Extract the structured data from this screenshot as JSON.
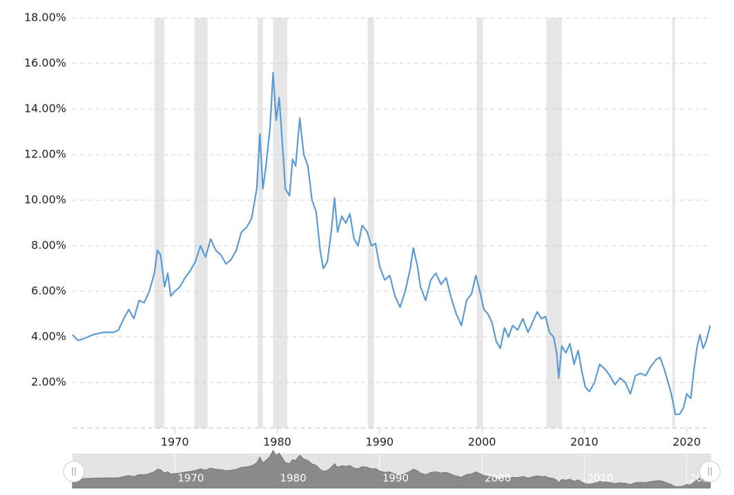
{
  "chart_data": {
    "type": "line",
    "x": [
      1960,
      1960.5,
      1961,
      1962,
      1963,
      1964,
      1964.5,
      1965,
      1965.5,
      1966,
      1966.5,
      1967,
      1967.5,
      1968,
      1968.3,
      1968.6,
      1969,
      1969.3,
      1969.6,
      1970,
      1970.5,
      1971,
      1971.5,
      1972,
      1972.5,
      1973,
      1973.5,
      1974,
      1974.5,
      1975,
      1975.5,
      1976,
      1976.5,
      1977,
      1977.5,
      1978,
      1978.3,
      1978.6,
      1978.9,
      1979.3,
      1979.6,
      1979.9,
      1980.2,
      1980.5,
      1980.8,
      1981.2,
      1981.5,
      1981.8,
      1982.2,
      1982.6,
      1983,
      1983.4,
      1983.8,
      1984.2,
      1984.5,
      1984.9,
      1985.3,
      1985.6,
      1985.9,
      1986.3,
      1986.7,
      1987.1,
      1987.5,
      1987.9,
      1988.3,
      1988.8,
      1989.2,
      1989.6,
      1990,
      1990.5,
      1991,
      1991.5,
      1992,
      1992.5,
      1993,
      1993.3,
      1993.7,
      1994,
      1994.5,
      1995,
      1995.5,
      1996,
      1996.5,
      1997,
      1997.5,
      1998,
      1998.5,
      1999,
      1999.4,
      1999.8,
      2000.2,
      2000.6,
      2001,
      2001.4,
      2001.8,
      2002.2,
      2002.6,
      2003,
      2003.5,
      2004,
      2004.5,
      2005,
      2005.4,
      2005.8,
      2006.2,
      2006.6,
      2007,
      2007.3,
      2007.5,
      2007.8,
      2008.2,
      2008.6,
      2009,
      2009.4,
      2009.8,
      2010.1,
      2010.5,
      2011,
      2011.5,
      2012,
      2012.5,
      2013,
      2013.5,
      2014,
      2014.5,
      2015,
      2015.5,
      2016,
      2016.5,
      2017,
      2017.4,
      2017.8,
      2018.2,
      2018.5,
      2018.9,
      2019.3,
      2019.7,
      2020,
      2020.4,
      2020.7,
      2021,
      2021.3,
      2021.6,
      2021.9,
      2022.3
    ],
    "series": [
      {
        "color": "#5a9bd4",
        "values": [
          4.1,
          3.85,
          3.9,
          4.1,
          4.2,
          4.2,
          4.3,
          4.8,
          5.2,
          4.8,
          5.6,
          5.5,
          6.0,
          6.8,
          7.8,
          7.6,
          6.2,
          6.8,
          5.8,
          6.0,
          6.2,
          6.6,
          6.9,
          7.3,
          8.0,
          7.5,
          8.3,
          7.8,
          7.6,
          7.2,
          7.4,
          7.8,
          8.6,
          8.8,
          9.2,
          10.5,
          12.9,
          10.5,
          11.5,
          13.2,
          15.6,
          13.5,
          14.5,
          12.5,
          10.5,
          10.2,
          11.8,
          11.5,
          13.6,
          12.0,
          11.5,
          10.0,
          9.5,
          7.8,
          7.0,
          7.3,
          8.7,
          10.1,
          8.6,
          9.3,
          9.0,
          9.4,
          8.3,
          8.0,
          8.9,
          8.6,
          8.0,
          8.1,
          7.1,
          6.5,
          6.7,
          5.8,
          5.3,
          6.0,
          7.0,
          7.9,
          7.1,
          6.2,
          5.6,
          6.5,
          6.8,
          6.3,
          6.6,
          5.7,
          5.0,
          4.5,
          5.6,
          5.9,
          6.7,
          6.0,
          5.2,
          5.0,
          4.6,
          3.8,
          3.5,
          4.4,
          4.0,
          4.5,
          4.3,
          4.8,
          4.2,
          4.7,
          5.1,
          4.8,
          4.9,
          4.2,
          4.0,
          3.3,
          2.2,
          3.6,
          3.3,
          3.7,
          2.8,
          3.4,
          2.4,
          1.8,
          1.6,
          2.0,
          2.8,
          2.6,
          2.3,
          1.9,
          2.2,
          2.0,
          1.5,
          2.3,
          2.4,
          2.3,
          2.7,
          3.0,
          3.1,
          2.6,
          2.0,
          1.5,
          0.6,
          0.6,
          0.9,
          1.5,
          1.3,
          2.5,
          3.5,
          4.1,
          3.5,
          3.8,
          4.5
        ]
      }
    ],
    "shaded_ranges": [
      [
        1968.0,
        1968.95
      ],
      [
        1971.9,
        1973.2
      ],
      [
        1978.1,
        1978.6
      ],
      [
        1979.6,
        1981.0
      ],
      [
        1988.85,
        1989.45
      ],
      [
        1999.5,
        2000.1
      ],
      [
        2006.3,
        2007.8
      ],
      [
        2018.6,
        2018.85
      ]
    ],
    "shade_color": "#e6e6e6",
    "xlim": [
      1960,
      2022.4
    ],
    "xticks": [
      1970,
      1980,
      1990,
      2000,
      2010,
      2020
    ],
    "ylim": [
      0,
      18
    ],
    "yticks": [
      {
        "value": 2,
        "label": "2.00%"
      },
      {
        "value": 4,
        "label": "4.00%"
      },
      {
        "value": 6,
        "label": "6.00%"
      },
      {
        "value": 8,
        "label": "8.00%"
      },
      {
        "value": 10,
        "label": "10.00%"
      },
      {
        "value": 12,
        "label": "12.00%"
      },
      {
        "value": 14,
        "label": "14.00%"
      },
      {
        "value": 16,
        "label": "16.00%"
      },
      {
        "value": 18,
        "label": "18.00%"
      }
    ],
    "grid": true
  }
}
